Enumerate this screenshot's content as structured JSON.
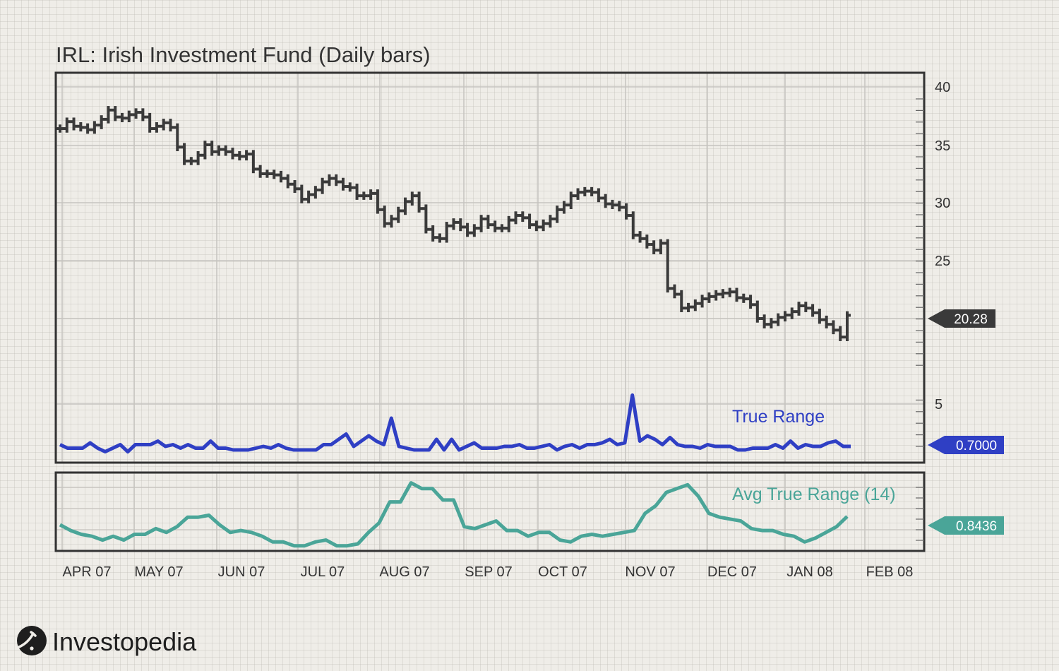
{
  "title": "IRL: Irish Investment Fund (Daily bars)",
  "brand": "Investopedia",
  "colors": {
    "price": "#3a3a3a",
    "true_range": "#2f3fc4",
    "atr": "#4aa598",
    "frame": "#333333",
    "grid": "#c6c4bf"
  },
  "icons": [
    "investopedia-logo-icon"
  ],
  "chart_data": [
    {
      "type": "line",
      "name": "price",
      "xlabel": "",
      "ylabel": "",
      "x_tick_labels": [
        "APR 07",
        "MAY 07",
        "JUN 07",
        "JUL 07",
        "AUG 07",
        "SEP 07",
        "OCT 07",
        "NOV 07",
        "DEC 07",
        "JAN 08",
        "FEB 08"
      ],
      "y_tick_labels": [
        "40",
        "35",
        "30",
        "25",
        "5"
      ],
      "ylim": [
        0,
        40
      ],
      "grid": true,
      "last_value_label": "20.28",
      "series": [
        {
          "values": [
            36.4,
            37.0,
            36.6,
            36.5,
            36.3,
            36.7,
            37.2,
            38.0,
            37.4,
            37.3,
            37.6,
            37.8,
            37.4,
            36.4,
            36.6,
            36.9,
            36.5,
            34.8,
            33.6,
            33.6,
            34.1,
            35.0,
            34.4,
            34.6,
            34.4,
            34.1,
            34.0,
            34.2,
            32.9,
            32.5,
            32.5,
            32.4,
            32.1,
            31.6,
            31.2,
            30.3,
            30.7,
            31.1,
            31.8,
            32.1,
            31.8,
            31.4,
            31.3,
            30.6,
            30.6,
            30.8,
            29.4,
            28.2,
            28.6,
            29.3,
            30.1,
            30.6,
            29.5,
            27.7,
            27.0,
            26.9,
            28.0,
            28.3,
            27.9,
            27.4,
            27.8,
            28.6,
            28.1,
            27.8,
            27.8,
            28.5,
            28.9,
            28.7,
            28.1,
            27.9,
            28.2,
            28.6,
            29.4,
            29.8,
            30.6,
            30.9,
            31.0,
            30.9,
            30.4,
            29.9,
            29.8,
            29.6,
            28.9,
            27.2,
            26.9,
            26.4,
            25.9,
            26.5,
            22.6,
            22.1,
            20.9,
            21.0,
            21.3,
            21.7,
            21.9,
            22.1,
            22.2,
            22.3,
            21.8,
            21.7,
            21.2,
            20.0,
            19.5,
            19.7,
            20.1,
            20.3,
            20.6,
            21.1,
            20.9,
            20.5,
            19.9,
            19.5,
            19.0,
            18.4,
            20.28
          ]
        }
      ]
    },
    {
      "type": "line",
      "name": "true_range",
      "xlabel": "",
      "ylabel": "",
      "last_value_label": "0.7000",
      "series": [
        {
          "name": "True Range",
          "values": [
            0.8,
            0.6,
            0.6,
            0.6,
            0.9,
            0.6,
            0.4,
            0.6,
            0.8,
            0.4,
            0.8,
            0.8,
            0.8,
            1.0,
            0.7,
            0.8,
            0.6,
            0.8,
            0.6,
            0.6,
            1.0,
            0.6,
            0.6,
            0.5,
            0.5,
            0.5,
            0.6,
            0.7,
            0.6,
            0.8,
            0.6,
            0.5,
            0.5,
            0.5,
            0.5,
            0.8,
            0.8,
            1.1,
            1.4,
            0.7,
            1.0,
            1.3,
            1.0,
            0.8,
            2.3,
            0.7,
            0.6,
            0.5,
            0.5,
            0.5,
            1.1,
            0.5,
            1.1,
            0.5,
            0.7,
            0.9,
            0.6,
            0.6,
            0.6,
            0.7,
            0.7,
            0.8,
            0.6,
            0.6,
            0.7,
            0.8,
            0.5,
            0.7,
            0.8,
            0.6,
            0.8,
            0.8,
            0.9,
            1.1,
            0.8,
            0.9,
            3.6,
            1.0,
            1.3,
            1.1,
            0.8,
            1.2,
            0.8,
            0.7,
            0.7,
            0.6,
            0.8,
            0.7,
            0.7,
            0.7,
            0.5,
            0.5,
            0.6,
            0.6,
            0.6,
            0.8,
            0.6,
            1.0,
            0.6,
            0.8,
            0.7,
            0.7,
            0.9,
            1.0,
            0.7,
            0.7
          ]
        }
      ]
    },
    {
      "type": "line",
      "name": "avg_true_range",
      "xlabel": "",
      "ylabel": "",
      "last_value_label": "0.8436",
      "series": [
        {
          "name": "Avg True Range (14)",
          "values": [
            0.8,
            0.77,
            0.75,
            0.74,
            0.72,
            0.74,
            0.72,
            0.75,
            0.75,
            0.78,
            0.76,
            0.79,
            0.84,
            0.84,
            0.85,
            0.8,
            0.76,
            0.77,
            0.76,
            0.74,
            0.71,
            0.71,
            0.69,
            0.69,
            0.71,
            0.72,
            0.69,
            0.69,
            0.7,
            0.76,
            0.81,
            0.92,
            0.92,
            1.02,
            0.99,
            0.99,
            0.93,
            0.93,
            0.79,
            0.78,
            0.8,
            0.82,
            0.77,
            0.77,
            0.74,
            0.76,
            0.76,
            0.72,
            0.71,
            0.74,
            0.75,
            0.74,
            0.75,
            0.76,
            0.77,
            0.86,
            0.9,
            0.97,
            0.99,
            1.01,
            0.95,
            0.86,
            0.84,
            0.83,
            0.82,
            0.78,
            0.77,
            0.77,
            0.75,
            0.74,
            0.71,
            0.73,
            0.76,
            0.79,
            0.8436
          ]
        }
      ]
    }
  ]
}
